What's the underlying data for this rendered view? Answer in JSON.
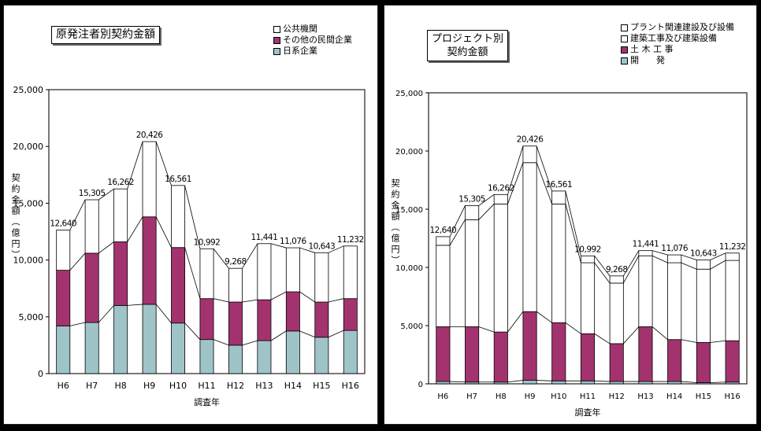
{
  "charts": [
    {
      "title": "原発注者別契約金額",
      "chart_data": {
        "type": "bar",
        "stacked": true,
        "categories": [
          "H6",
          "H7",
          "H8",
          "H9",
          "H10",
          "H11",
          "H12",
          "H13",
          "H14",
          "H15",
          "H16"
        ],
        "series": [
          {
            "name": "日系企業",
            "values": [
              4200,
              4500,
              6000,
              6100,
              4450,
              3000,
              2500,
              2900,
              3750,
              3200,
              3800
            ]
          },
          {
            "name": "その他の民間企業",
            "values": [
              4900,
              6100,
              5600,
              7700,
              6650,
              3600,
              3800,
              3600,
              3450,
              3100,
              2800
            ]
          },
          {
            "name": "公共機関",
            "values": [
              3540,
              4705,
              4662,
              6626,
              5461,
              4392,
              2968,
              4941,
              3876,
              4343,
              4632
            ]
          }
        ],
        "totals": [
          "12,640",
          "15,305",
          "16,262",
          "20,426",
          "16,561",
          "10,992",
          "9,268",
          "11,441",
          "11,076",
          "10,643",
          "11,232"
        ],
        "ylabel": "契約金額（億円）",
        "xlabel": "調査年",
        "ylim": [
          0,
          25000
        ],
        "yticks": [
          "0",
          "5,000",
          "10,000",
          "15,000",
          "20,000",
          "25,000"
        ],
        "colors": [
          "#9fc4c8",
          "#a3336f",
          "#ffffff"
        ],
        "legend_order": [
          2,
          1,
          0
        ],
        "legend_position": "top-right"
      }
    },
    {
      "title": "プロジェクト別\n契約金額",
      "chart_data": {
        "type": "bar",
        "stacked": true,
        "categories": [
          "H6",
          "H7",
          "H8",
          "H9",
          "H10",
          "H11",
          "H12",
          "H13",
          "H14",
          "H15",
          "H16"
        ],
        "series": [
          {
            "name": "開　　発",
            "values": [
              200,
              150,
              150,
              300,
              250,
              250,
              200,
              200,
              200,
              100,
              150
            ]
          },
          {
            "name": "土 木 工 事",
            "values": [
              4700,
              4750,
              4300,
              5900,
              5000,
              4050,
              3250,
              4700,
              3600,
              3450,
              3550
            ]
          },
          {
            "name": "建築工事及び建築設備",
            "values": [
              7000,
              9200,
              11000,
              12800,
              10200,
              6100,
              5200,
              6100,
              6600,
              6300,
              6900
            ]
          },
          {
            "name": "プラント関連建設及び設備",
            "values": [
              740,
              1205,
              812,
              1426,
              1111,
              592,
              618,
              441,
              676,
              793,
              632
            ]
          }
        ],
        "totals": [
          "12,640",
          "15,305",
          "16,262",
          "20,426",
          "16,561",
          "10,992",
          "9,268",
          "11,441",
          "11,076",
          "10,643",
          "11,232"
        ],
        "ylabel": "契約金額（億円）",
        "xlabel": "調査年",
        "ylim": [
          0,
          25000
        ],
        "yticks": [
          "0",
          "5,000",
          "10,000",
          "15,000",
          "20,000",
          "25,000"
        ],
        "colors": [
          "#9fc4c8",
          "#a3336f",
          "#ffffff",
          "#ffffff"
        ],
        "legend_order": [
          3,
          2,
          1,
          0
        ],
        "legend_position": "top-right"
      }
    }
  ]
}
